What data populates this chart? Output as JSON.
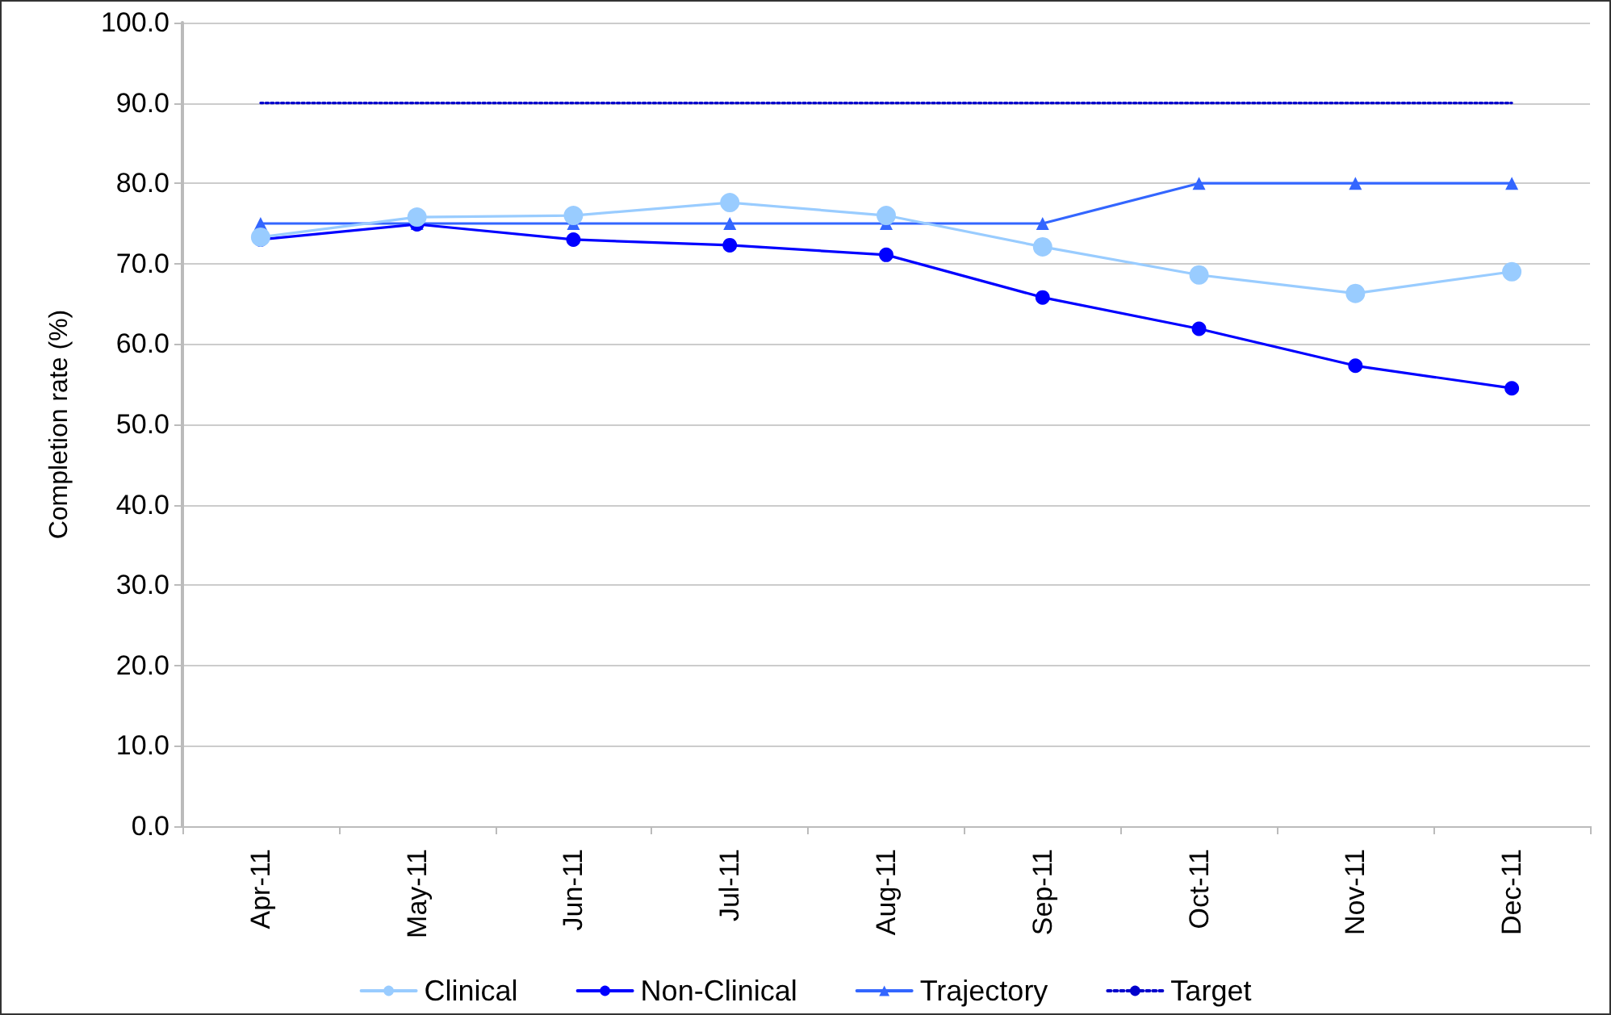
{
  "chart_data": {
    "type": "line",
    "ylabel": "Completion rate (%)",
    "categories": [
      "Apr-11",
      "May-11",
      "Jun-11",
      "Jul-11",
      "Aug-11",
      "Sep-11",
      "Oct-11",
      "Nov-11",
      "Dec-11"
    ],
    "series": [
      {
        "name": "Clinical",
        "color": "#99ccff",
        "marker": "circle",
        "values": [
          73.3,
          75.8,
          76.0,
          77.6,
          76.0,
          72.1,
          68.6,
          66.3,
          69.0
        ]
      },
      {
        "name": "Non-Clinical",
        "color": "#0000ff",
        "marker": "circle",
        "values": [
          73.0,
          74.9,
          73.0,
          72.3,
          71.1,
          65.8,
          61.9,
          57.3,
          54.5
        ]
      },
      {
        "name": "Trajectory",
        "color": "#3366ff",
        "marker": "triangle",
        "values": [
          75,
          75,
          75,
          75,
          75,
          75,
          80,
          80,
          80
        ]
      },
      {
        "name": "Target",
        "color": "#0000cc",
        "marker": "none",
        "line_style": "dotted",
        "values": [
          90,
          90,
          90,
          90,
          90,
          90,
          90,
          90,
          90
        ]
      }
    ],
    "ylim": [
      0,
      100
    ],
    "yticks": [
      {
        "value": 0,
        "label": "0.0"
      },
      {
        "value": 10,
        "label": "10.0"
      },
      {
        "value": 20,
        "label": "20.0"
      },
      {
        "value": 30,
        "label": "30.0"
      },
      {
        "value": 40,
        "label": "40.0"
      },
      {
        "value": 50,
        "label": "50.0"
      },
      {
        "value": 60,
        "label": "60.0"
      },
      {
        "value": 70,
        "label": "70.0"
      },
      {
        "value": 80,
        "label": "80.0"
      },
      {
        "value": 90,
        "label": "90.0"
      },
      {
        "value": 100,
        "label": "100.0"
      }
    ],
    "grid": "y",
    "legend": "bottom",
    "line_style": "solid"
  }
}
